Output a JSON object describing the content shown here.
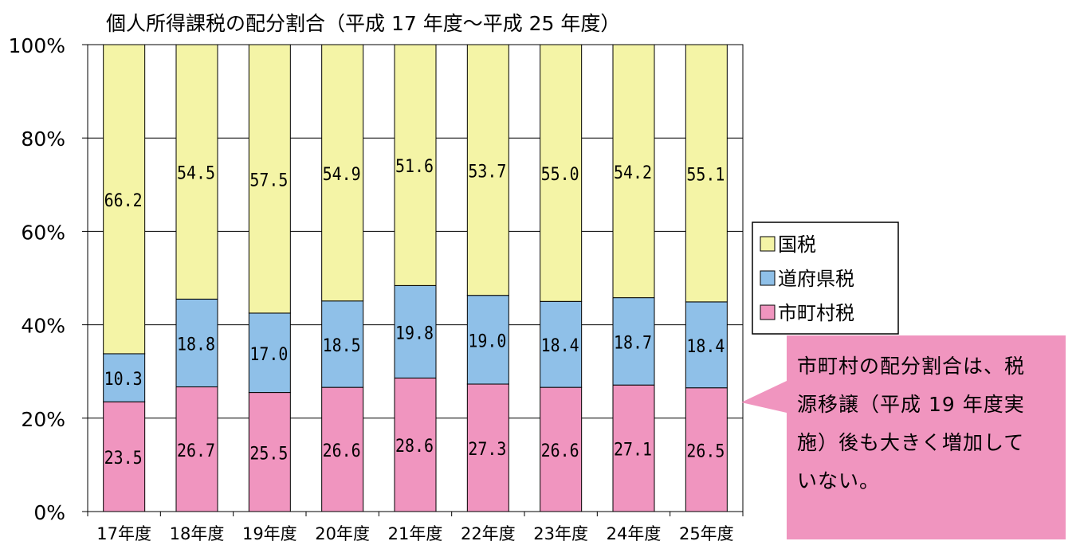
{
  "chart_data": {
    "type": "bar",
    "stacked": true,
    "percent": true,
    "title": "個人所得課税の配分割合（平成 17 年度～平成 25 年度）",
    "categories": [
      "17年度",
      "18年度",
      "19年度",
      "20年度",
      "21年度",
      "22年度",
      "23年度",
      "24年度",
      "25年度"
    ],
    "series": [
      {
        "name": "市町村税",
        "values": [
          23.5,
          26.7,
          25.5,
          26.6,
          28.6,
          27.3,
          26.6,
          27.1,
          26.5
        ],
        "labels": [
          "23.5",
          "26.7",
          "25.5",
          "26.6",
          "28.6",
          "27.3",
          "26.6",
          "27.1",
          "26.5"
        ],
        "color": "#f095bf"
      },
      {
        "name": "道府県税",
        "values": [
          10.3,
          18.8,
          17.0,
          18.5,
          19.8,
          19.0,
          18.4,
          18.7,
          18.4
        ],
        "labels": [
          "10.3",
          "18.8",
          "17.0",
          "18.5",
          "19.8",
          "19.0",
          "18.4",
          "18.7",
          "18.4"
        ],
        "color": "#8fc0e8"
      },
      {
        "name": "国税",
        "values": [
          66.2,
          54.5,
          57.5,
          54.9,
          51.6,
          53.7,
          55.0,
          54.2,
          55.1
        ],
        "labels": [
          "66.2",
          "54.5",
          "57.5",
          "54.9",
          "51.6",
          "53.7",
          "55.0",
          "54.2",
          "55.1"
        ],
        "color": "#f4f4a6"
      }
    ],
    "legend_order": [
      "国税",
      "道府県税",
      "市町村税"
    ],
    "legend_position": "right",
    "ylim": [
      0,
      100
    ],
    "yticks": [
      "0%",
      "20%",
      "40%",
      "60%",
      "80%",
      "100%"
    ],
    "grid": true,
    "annotation": {
      "text": "市町村の配分割合は、税源移譲（平成 19 年度実施）後も大きく増加していない。",
      "lines": [
        "市町村の配分割合は、税",
        "源移譲（平成 19 年度実",
        "施）後も大きく増加して",
        "いない。"
      ],
      "color": "#f095bf"
    }
  }
}
